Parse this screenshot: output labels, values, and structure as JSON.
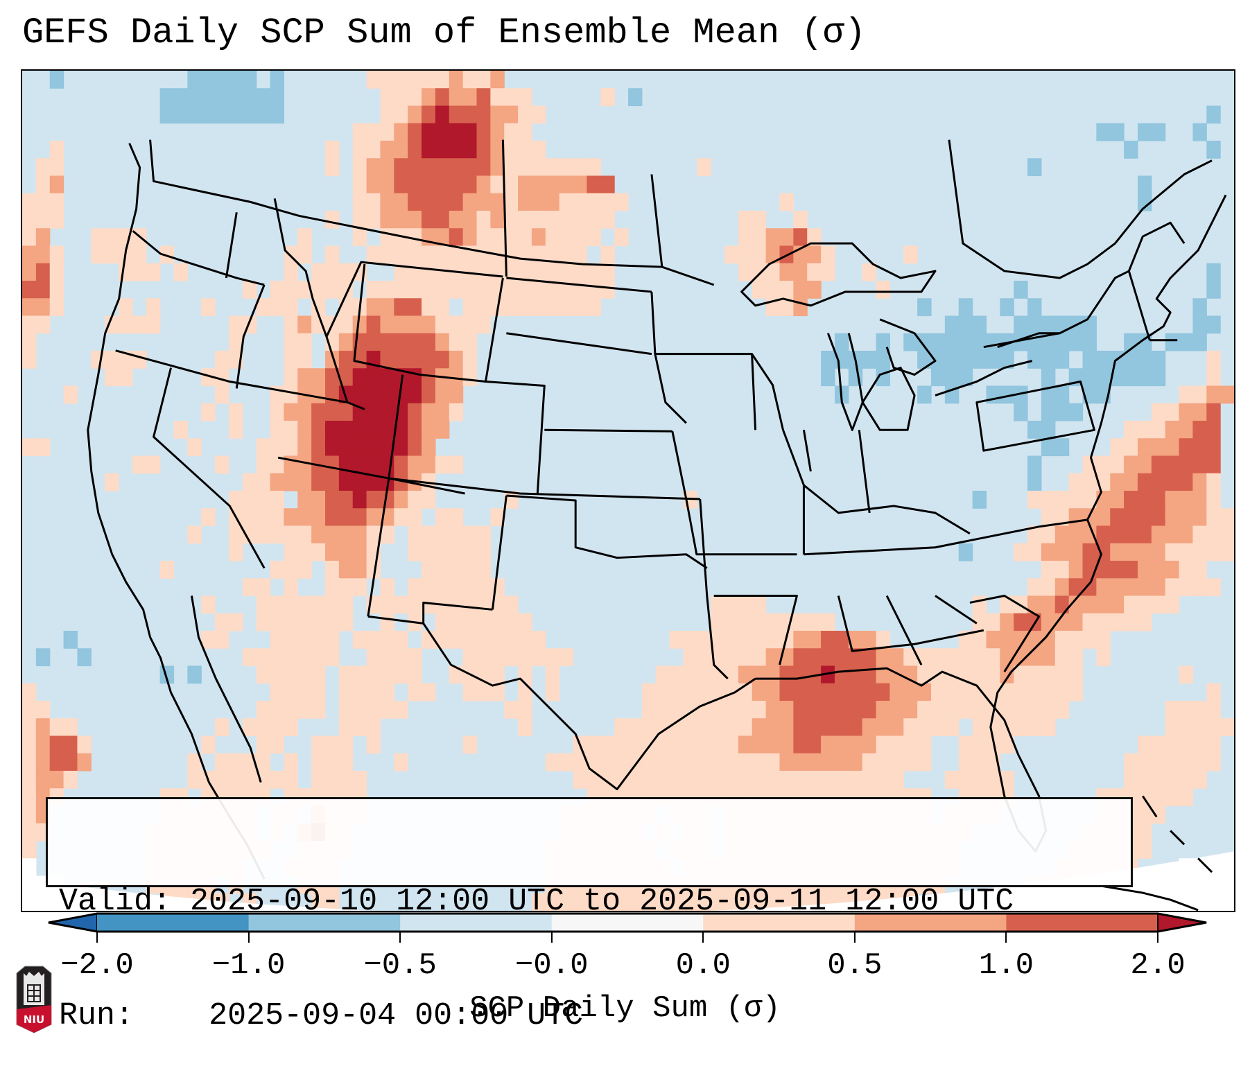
{
  "title": "GEFS Daily SCP Sum of Ensemble Mean (σ)",
  "info": {
    "valid_label": "Valid:",
    "valid_value": "2025-09-10 12:00 UTC to 2025-09-11 12:00 UTC",
    "run_label": "Run:",
    "run_value": "2025-09-04 00:00 UTC"
  },
  "colorbar": {
    "label": "SCP Daily Sum (σ)",
    "ticks": [
      "-2.0",
      "-1.0",
      "-0.5",
      "-0.0",
      "0.0",
      "0.5",
      "1.0",
      "2.0"
    ],
    "bins": [
      {
        "range": "< -2.0",
        "color": "#2166ac"
      },
      {
        "range": "-2.0 to -1.0",
        "color": "#4393c3"
      },
      {
        "range": "-1.0 to -0.5",
        "color": "#92c5de"
      },
      {
        "range": "-0.5 to -0.0",
        "color": "#d1e5f0"
      },
      {
        "range": "-0.0 to 0.0",
        "color": "#f7f7f7"
      },
      {
        "range": "0.0 to 0.5",
        "color": "#fddbc7"
      },
      {
        "range": "0.5 to 1.0",
        "color": "#f4a582"
      },
      {
        "range": "1.0 to 2.0",
        "color": "#d6604d"
      },
      {
        "range": "> 2.0",
        "color": "#b2182b"
      }
    ]
  },
  "logo": {
    "text": "NIU",
    "icon": "niu-logo-icon"
  },
  "chart_data": {
    "type": "heatmap",
    "title": "GEFS Daily SCP Sum of Ensemble Mean (σ)",
    "colorbar_label": "SCP Daily Sum (σ)",
    "levels": [
      -2.0,
      -1.0,
      -0.5,
      -0.0,
      0.0,
      0.5,
      1.0,
      2.0
    ],
    "domain": "CONUS and adjacent waters",
    "grid_legend": {
      ".": "-0.5 to -0.0",
      "b": "-1.0 to -0.5",
      "w": "-0.0 to 0.0",
      "1": "0.0 to 0.5",
      "2": "0.5 to 1.0",
      "3": "1.0 to 2.0",
      "4": "> 2.0",
      " ": "outside domain"
    },
    "grid": [
      "..b.........bbbbb.b......1111112112....................................................",
      "..........bbbbbbbbb.......11123223111.....1.b..........................................",
      "..........bbbbbbbbb.......112343332211................................................b",
      "........................1112344443211.........................................bb.bb..b",
      "..1...................1.11223444432111..........................................b.....b.",
      ".11...................1.122333333321111111.......1.......................b.............",
      ".12.....................1223333332112222233......................................b......",
      "111.....................11223333222122211111...........1.........................b.....",
      "111...................1.1122233221211111111.........11..1...............................",
      "12...1111...........1...1.1112232111121111.1........112231.............................",
      "221..1111.1........11.1..1111111111111111.1........11123221.....1......................",
      "231....111.1.......1.1111..1111111111111111.........1112211..1........................b",
      "331.............1.111111.111111111111111111..........11122....1.........b.............b",
      "221....1.1...1...111.1.11223311.1111111111............112........b..b..b.b...........b.",
      "11....1111.....11..121112322221111.................................bbb..bbbbbb.......bb",
      "1..............1...11.12333333211..........................b..b.bbbbbbbbbbbbbb..bb.bbb.",
      "1....1111.....11...11.23343333321.........................bbbbb..bbbbbbb.bbb.bbbbbb...1",
      "......11.....11....12233444443221.........................b.b.b...bbb.....b.bbbbbbb...1",
      "...1..........1...11223444444322...........................b.....b.b..bbb.bb.bb.....1122",
      ".............1.1..12233344443221........................................b.bbb.....11223",
      "...........1...1..1123444444322..........................................bb.....1112233",
      "11..........1....1112344444432............................................bb...11222333",
      "........11....1..112233444432211.........................................b...1112233333",
      "......1.........11222334444321...........................................b..11122333321",
      "...............1111.2233433211.....1............1....................b...11111223332221",
      ".............1.11112223332211.11..1.......................................11222333322211",
      "............1..111111222211.111111.......................................112223333222111",
      "...............1...1112221..111111..................................b...1122233222211111",
      "..........1.......111.1221...11111........................................112333322211.",
      "................11.1..111.1.1111111......................................11233222221111",
      ".............1...1111111.11111111111..............1111...............1.1122322221111...",
      "..............11.1111111..1.1.1111111.............111111111..........1123322211111.....",
      "...b.........11...11111.1111.111111111.........1111111112233221.....11222221111........",
      ".b..b...........1111111..1111...11111111........11111122333333221111111222211.1........",
      "..........b.b....11111.111111..1111.1.1.......1111112223334333222111111211111.......1..",
      "1.................1111.1111.11..111.1.1......11111111223333333322211111111111.........1",
      "11...............11111.11111.......11........1111111112233333322211111111111.......1111",
      "1211..........1.1111...111..........1......1111111111222333332221111.111111........11111",
      "12331........1...11..111.1......1.......11111111111122223322221111..1111.........111111",
      "12332.......1.1111.1.111...1..........1111111111111111122222211111..111.........1111111",
      "1221........11111111.1111...............111111111111111111111111...11111........111111.",
      "121.......11.11111.111111................1111111111111111111111111..1111......1111111..",
      "12........1111111.11.2111..............1111111.111.111111111111111.1111.......11111....",
      "11.......11111111.1.2311...............111111.1.11.111111111111111111........11111.....",
      "1........111111111..1111..............11111111.111.11111111111111111........111111.....",
      " ........1111111...1111...............111111111.11111111111111111111.......111111...  ",
      "   ......11111.1....111...............11111111111111111111111111111......11111111.    ",
      "      ....11111.1....11..............1111111111111111111111111111......1111111.      "
    ]
  }
}
